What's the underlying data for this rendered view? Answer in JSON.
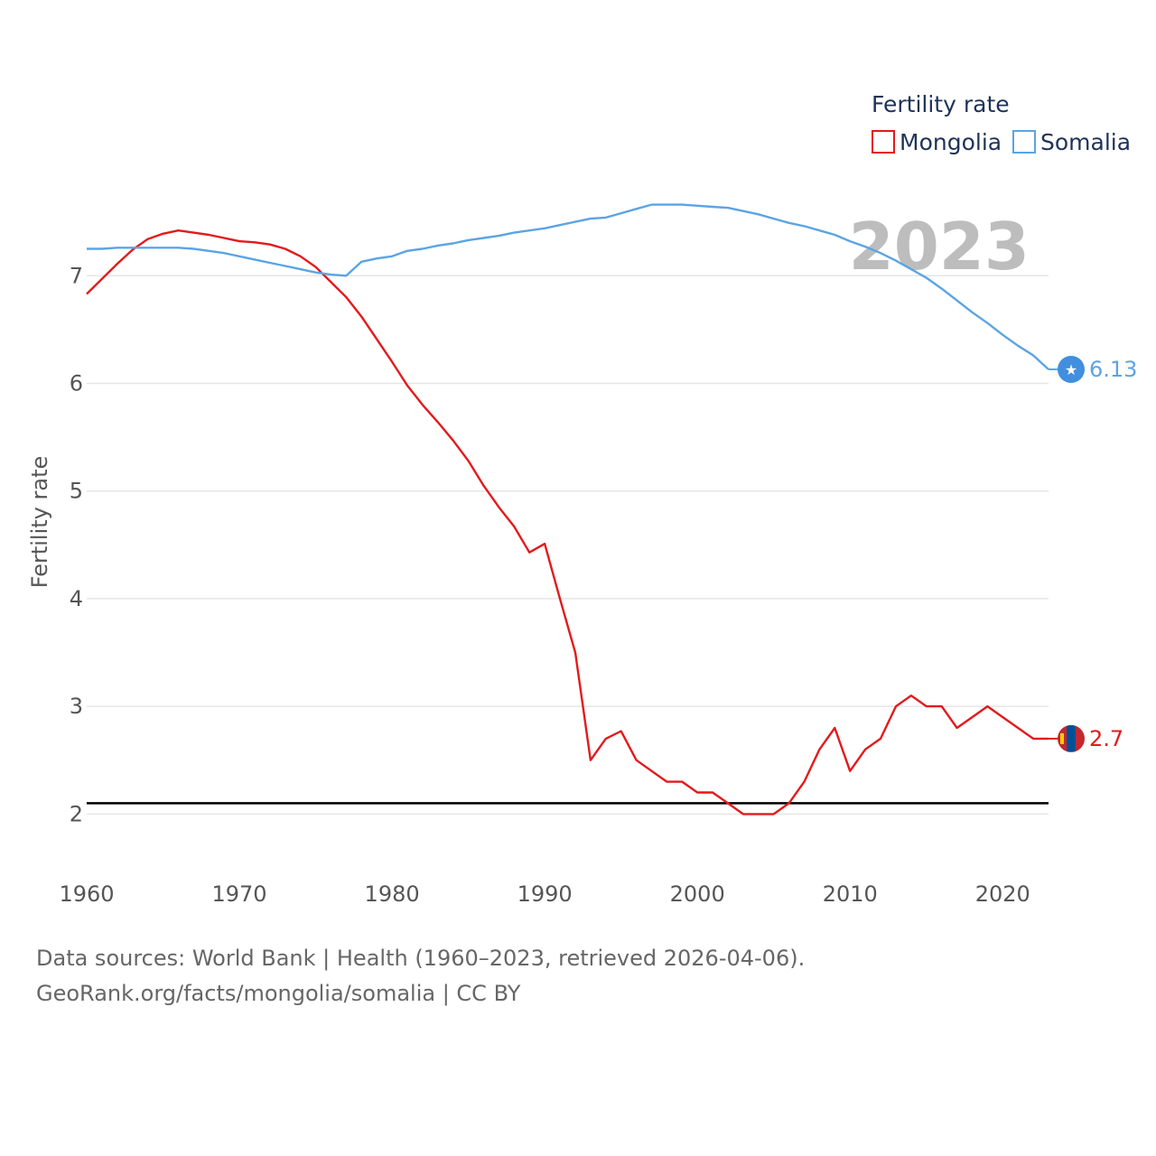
{
  "chart_data": {
    "type": "line",
    "title": "",
    "xlabel": "",
    "ylabel": "Fertility rate",
    "legend_title": "Fertility rate",
    "legend_position": "top-right",
    "current_year_label": "2023",
    "xlim": [
      1960,
      2023
    ],
    "ylim": [
      1.55,
      7.95
    ],
    "x_ticks": [
      "1960",
      "1970",
      "1980",
      "1990",
      "2000",
      "2010",
      "2020"
    ],
    "y_ticks": [
      "2",
      "3",
      "4",
      "5",
      "6",
      "7"
    ],
    "reference_line": {
      "y": 2.1,
      "color": "#000000"
    },
    "x": [
      1960,
      1961,
      1962,
      1963,
      1964,
      1965,
      1966,
      1967,
      1968,
      1969,
      1970,
      1971,
      1972,
      1973,
      1974,
      1975,
      1976,
      1977,
      1978,
      1979,
      1980,
      1981,
      1982,
      1983,
      1984,
      1985,
      1986,
      1987,
      1988,
      1989,
      1990,
      1991,
      1992,
      1993,
      1994,
      1995,
      1996,
      1997,
      1998,
      1999,
      2000,
      2001,
      2002,
      2003,
      2004,
      2005,
      2006,
      2007,
      2008,
      2009,
      2010,
      2011,
      2012,
      2013,
      2014,
      2015,
      2016,
      2017,
      2018,
      2019,
      2020,
      2021,
      2022,
      2023
    ],
    "series": [
      {
        "name": "Mongolia",
        "color": "#e31a1c",
        "end_label": "2.7",
        "values": [
          6.83,
          6.97,
          7.11,
          7.24,
          7.34,
          7.39,
          7.42,
          7.4,
          7.38,
          7.35,
          7.32,
          7.31,
          7.29,
          7.25,
          7.18,
          7.08,
          6.94,
          6.8,
          6.62,
          6.41,
          6.2,
          5.98,
          5.8,
          5.64,
          5.47,
          5.28,
          5.05,
          4.85,
          4.67,
          4.43,
          4.51,
          4.0,
          3.5,
          2.5,
          2.7,
          2.77,
          2.5,
          2.4,
          2.3,
          2.3,
          2.2,
          2.2,
          2.1,
          2.0,
          2.0,
          2.0,
          2.1,
          2.3,
          2.6,
          2.8,
          2.4,
          2.6,
          2.7,
          3.0,
          3.1,
          3.0,
          3.0,
          2.8,
          2.9,
          3.0,
          2.9,
          2.8,
          2.7,
          2.7
        ]
      },
      {
        "name": "Somalia",
        "color": "#5ba4e5",
        "end_label": "6.13",
        "values": [
          7.25,
          7.25,
          7.26,
          7.26,
          7.26,
          7.26,
          7.26,
          7.25,
          7.23,
          7.21,
          7.18,
          7.15,
          7.12,
          7.09,
          7.06,
          7.03,
          7.01,
          7.0,
          7.13,
          7.16,
          7.18,
          7.23,
          7.25,
          7.28,
          7.3,
          7.33,
          7.35,
          7.37,
          7.4,
          7.42,
          7.44,
          7.47,
          7.5,
          7.53,
          7.54,
          7.58,
          7.62,
          7.66,
          7.66,
          7.66,
          7.65,
          7.64,
          7.63,
          7.6,
          7.57,
          7.53,
          7.49,
          7.46,
          7.42,
          7.38,
          7.32,
          7.27,
          7.21,
          7.14,
          7.06,
          6.98,
          6.88,
          6.77,
          6.66,
          6.56,
          6.45,
          6.35,
          6.26,
          6.13
        ]
      }
    ]
  },
  "footer": {
    "line1": "Data sources: World Bank | Health (1960–2023, retrieved 2026-04-06).",
    "line2": "GeoRank.org/facts/mongolia/somalia | CC BY"
  }
}
